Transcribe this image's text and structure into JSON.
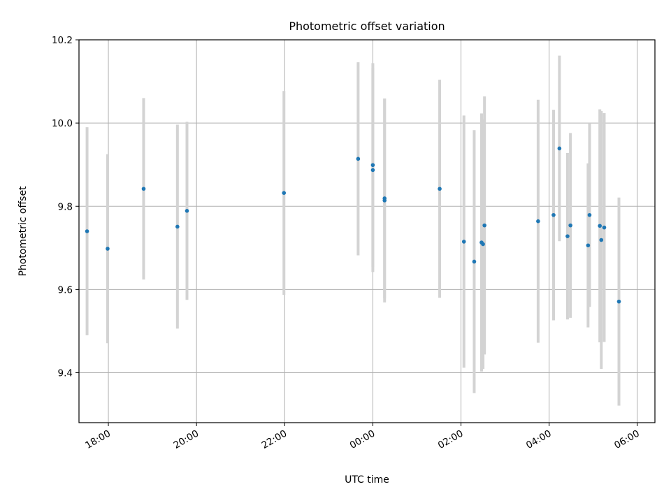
{
  "chart_data": {
    "type": "scatter",
    "title": "Photometric offset variation",
    "xlabel": "UTC time",
    "ylabel": "Photometric offset",
    "x_axis": {
      "kind": "time",
      "range": [
        "17:20",
        "06:24"
      ],
      "ticks": [
        "18:00",
        "20:00",
        "22:00",
        "00:00",
        "02:00",
        "04:00",
        "06:00"
      ]
    },
    "y_axis": {
      "range": [
        9.28,
        10.2
      ],
      "ticks": [
        "9.4",
        "9.6",
        "9.8",
        "10.0",
        "10.2"
      ]
    },
    "grid": true,
    "marker_color": "#1f77b4",
    "errorbar_color": "#d3d3d3",
    "points": [
      {
        "time": "17:31",
        "value": 9.74,
        "error": 0.25
      },
      {
        "time": "17:59",
        "value": 9.698,
        "error": 0.227
      },
      {
        "time": "18:48",
        "value": 9.842,
        "error": 0.218
      },
      {
        "time": "19:34",
        "value": 9.751,
        "error": 0.245
      },
      {
        "time": "19:47",
        "value": 9.789,
        "error": 0.214
      },
      {
        "time": "21:59",
        "value": 9.832,
        "error": 0.245
      },
      {
        "time": "23:40",
        "value": 9.914,
        "error": 0.232
      },
      {
        "time": "00:00",
        "value": 9.899,
        "error": 0.245
      },
      {
        "time": "00:00",
        "value": 9.887,
        "error": 0.245
      },
      {
        "time": "00:16",
        "value": 9.814,
        "error": 0.245
      },
      {
        "time": "00:16",
        "value": 9.819,
        "error": 0.24
      },
      {
        "time": "01:31",
        "value": 9.842,
        "error": 0.262
      },
      {
        "time": "02:04",
        "value": 9.715,
        "error": 0.303
      },
      {
        "time": "02:18",
        "value": 9.667,
        "error": 0.316
      },
      {
        "time": "02:28",
        "value": 9.713,
        "error": 0.31
      },
      {
        "time": "02:30",
        "value": 9.709,
        "error": 0.3
      },
      {
        "time": "02:32",
        "value": 9.754,
        "error": 0.31
      },
      {
        "time": "03:45",
        "value": 9.764,
        "error": 0.292
      },
      {
        "time": "04:06",
        "value": 9.779,
        "error": 0.253
      },
      {
        "time": "04:14",
        "value": 9.939,
        "error": 0.223
      },
      {
        "time": "04:25",
        "value": 9.728,
        "error": 0.2
      },
      {
        "time": "04:29",
        "value": 9.754,
        "error": 0.222
      },
      {
        "time": "04:53",
        "value": 9.706,
        "error": 0.197
      },
      {
        "time": "04:55",
        "value": 9.779,
        "error": 0.221
      },
      {
        "time": "05:09",
        "value": 9.753,
        "error": 0.28
      },
      {
        "time": "05:11",
        "value": 9.719,
        "error": 0.31
      },
      {
        "time": "05:15",
        "value": 9.749,
        "error": 0.275
      },
      {
        "time": "05:35",
        "value": 9.571,
        "error": 0.25
      }
    ]
  }
}
